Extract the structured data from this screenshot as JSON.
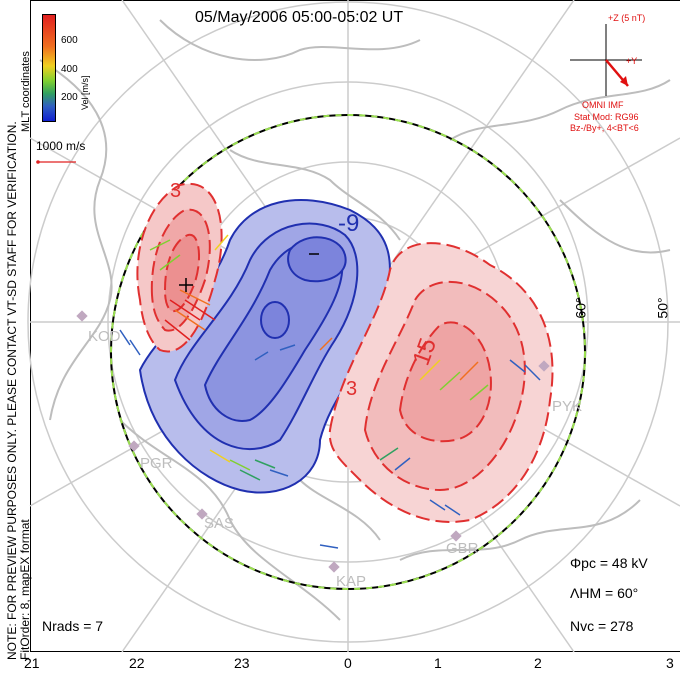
{
  "title": "05/May/2006 05:00-05:02 UT",
  "side_note_line1": "NOTE: FOR PREVIEW PURPOSES ONLY. PLEASE CONTACT VT-SD STAFF FOR VERIFICATION.",
  "side_note_line2": "FitOrder: 8, mapEX format",
  "mlt_label": "MLT coordinates",
  "colorbar": {
    "label": "Vel [m/s]",
    "ticks": [
      "600",
      "400",
      "200"
    ],
    "colors": [
      "#e02020",
      "#f07020",
      "#f0d020",
      "#80d030",
      "#30a060",
      "#3060c0",
      "#1020d0"
    ]
  },
  "reference_vector": "1000 m/s",
  "imf": {
    "bz_label": "+Z (5 nT)",
    "by_label": "+Y",
    "source": "OMNI IMF",
    "model_line1": "Stat Mod: RG96",
    "model_line2": "Bz-/By+, 4<BT<6"
  },
  "stats": {
    "phi_pc": "Φpc = 48 kV",
    "lambda_hm": "ΛHM = 60°",
    "n_vc": "Nvc = 278",
    "n_rads": "Nrads = 7"
  },
  "latitude_labels": [
    "60°",
    "50°"
  ],
  "contour_labels": [
    "-9",
    "15",
    "3",
    "3"
  ],
  "radar_labels": [
    "KOD",
    "PGR",
    "SAS",
    "KAP",
    "GBR",
    "PYK"
  ],
  "mlt_ticks": [
    "21",
    "22",
    "23",
    "0",
    "1",
    "2",
    "3"
  ],
  "colors": {
    "positive": "#e03030",
    "negative": "#2030b0",
    "imf": "#e01010"
  }
}
